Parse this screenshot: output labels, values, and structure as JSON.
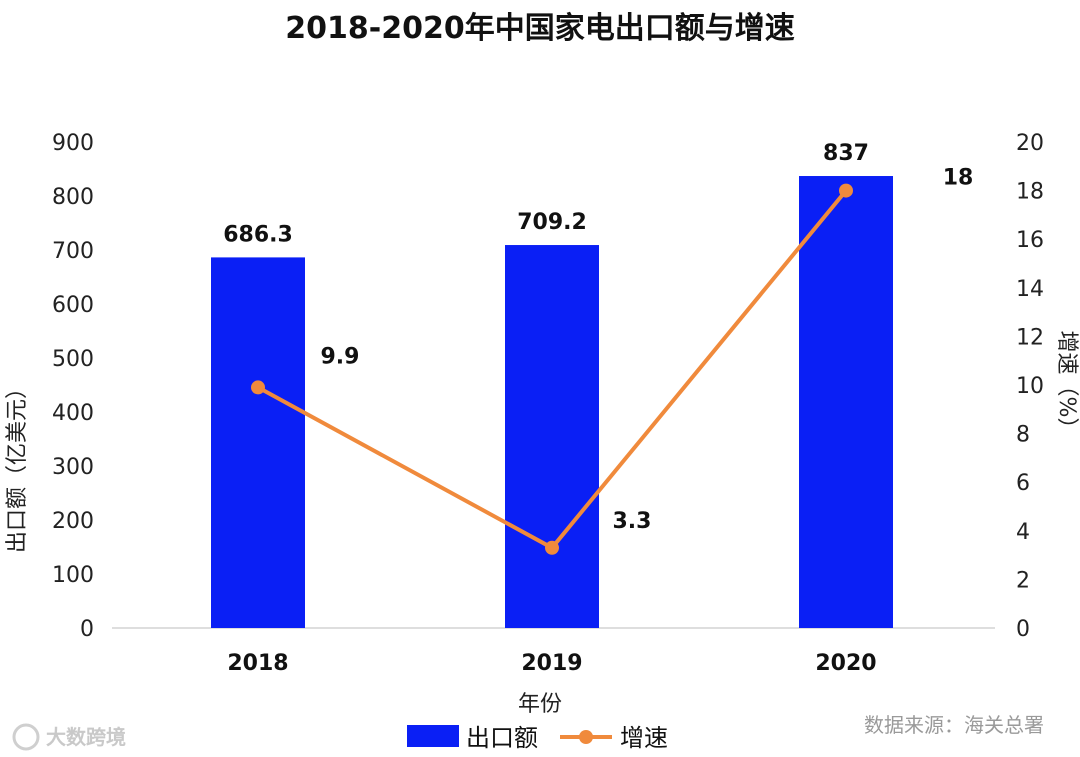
{
  "chart_data": {
    "type": "bar",
    "title": "2018-2020年中国家电出口额与增速",
    "categories": [
      "2018",
      "2019",
      "2020"
    ],
    "xlabel": "年份",
    "series": [
      {
        "name": "出口额",
        "type": "bar",
        "axis": "left",
        "values": [
          686.3,
          709.2,
          837
        ],
        "labels": [
          "686.3",
          "709.2",
          "837"
        ]
      },
      {
        "name": "增速",
        "type": "line",
        "axis": "right",
        "values": [
          9.9,
          3.3,
          18
        ],
        "labels": [
          "9.9",
          "3.3",
          "18"
        ]
      }
    ],
    "ylabel_left": "出口额（亿美元）",
    "ylabel_right": "增速（%）",
    "ylim_left": [
      0,
      900
    ],
    "yticks_left": [
      0,
      100,
      200,
      300,
      400,
      500,
      600,
      700,
      800,
      900
    ],
    "ylim_right": [
      0,
      20
    ],
    "yticks_right": [
      0,
      2,
      4,
      6,
      8,
      10,
      12,
      14,
      16,
      18,
      20
    ],
    "legend_position": "bottom",
    "grid": false,
    "colors": {
      "bar": "#0a1ff5",
      "line": "#f08a3c"
    }
  },
  "source": "数据来源：海关总署",
  "watermark": "大数跨境"
}
